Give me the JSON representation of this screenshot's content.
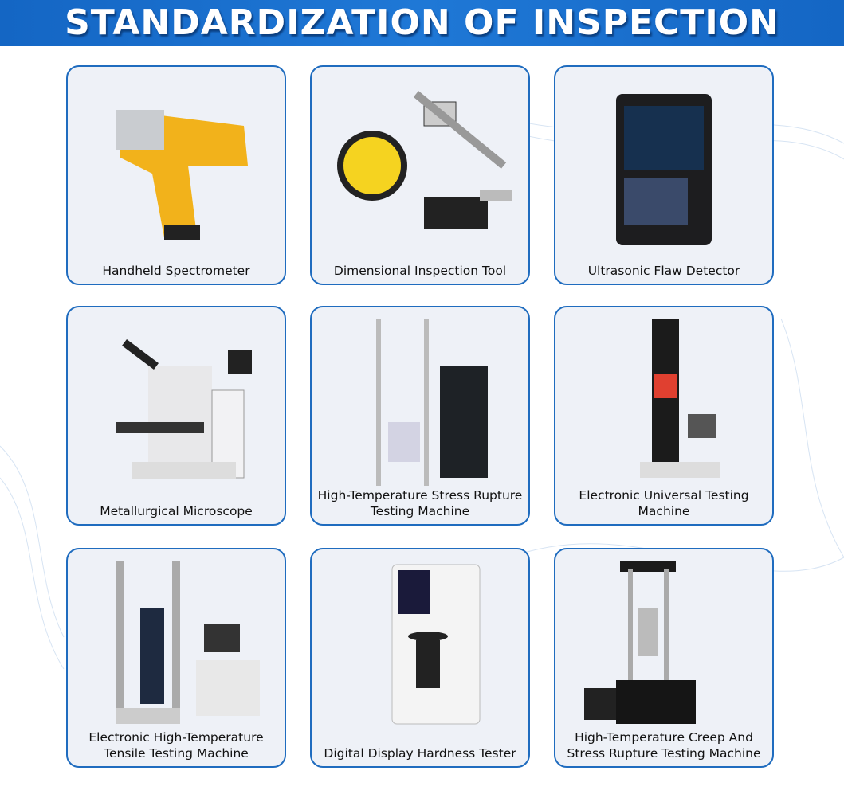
{
  "header": {
    "title": "STANDARDIZATION OF INSPECTION"
  },
  "colors": {
    "header_blue": "#1a70cc",
    "card_border": "#1f6cbf",
    "card_bg": "#eef1f7"
  },
  "items": [
    {
      "label": "Handheld Spectrometer",
      "icon": "spectrometer-photo"
    },
    {
      "label": "Dimensional Inspection Tool",
      "icon": "caliper-micrometer-tape-photo"
    },
    {
      "label": "Ultrasonic Flaw Detector",
      "icon": "flaw-detector-photo"
    },
    {
      "label": "Metallurgical Microscope",
      "icon": "microscope-photo"
    },
    {
      "label": "High-Temperature Stress Rupture Testing Machine",
      "icon": "stress-rupture-machine-photo"
    },
    {
      "label": "Electronic Universal Testing Machine",
      "icon": "universal-testing-machine-photo"
    },
    {
      "label": "Electronic High-Temperature Tensile Testing Machine",
      "icon": "tensile-testing-machine-photo"
    },
    {
      "label": "Digital Display Hardness Tester",
      "icon": "hardness-tester-photo"
    },
    {
      "label": "High-Temperature Creep And Stress Rupture Testing Machine",
      "icon": "creep-testing-machine-photo"
    }
  ]
}
